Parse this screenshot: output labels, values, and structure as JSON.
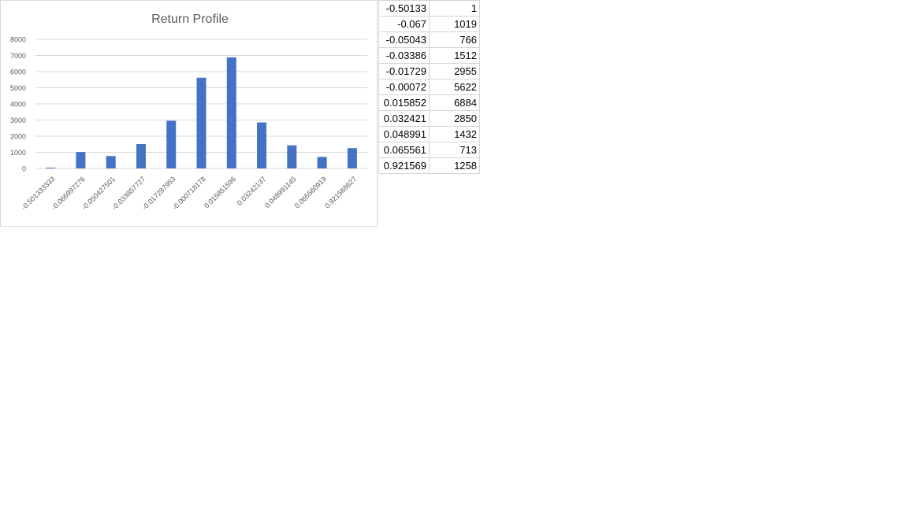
{
  "chart_data": {
    "type": "bar",
    "title": "Return Profile",
    "categories": [
      "-0.501333333",
      "-0.066997276",
      "-0.050427501",
      "-0.033857727",
      "-0.017287953",
      "-0.000718178",
      "0.015851596",
      "0.03242137",
      "0.048991145",
      "0.065560919",
      "0.921568627"
    ],
    "values": [
      1,
      1019,
      766,
      1512,
      2955,
      5622,
      6884,
      2850,
      1432,
      713,
      1258
    ],
    "ylim": [
      0,
      8000
    ],
    "yticks": [
      "0",
      "1000",
      "2000",
      "3000",
      "4000",
      "5000",
      "6000",
      "7000",
      "8000"
    ],
    "xlabel": "",
    "ylabel": "",
    "grid": true,
    "legend": "none",
    "bar_color": "#4472C4"
  },
  "table": {
    "rows": [
      {
        "a": "-0.50133",
        "b": "1"
      },
      {
        "a": "-0.067",
        "b": "1019"
      },
      {
        "a": "-0.05043",
        "b": "766"
      },
      {
        "a": "-0.03386",
        "b": "1512"
      },
      {
        "a": "-0.01729",
        "b": "2955"
      },
      {
        "a": "-0.00072",
        "b": "5622"
      },
      {
        "a": "0.015852",
        "b": "6884"
      },
      {
        "a": "0.032421",
        "b": "2850"
      },
      {
        "a": "0.048991",
        "b": "1432"
      },
      {
        "a": "0.065561",
        "b": "713"
      },
      {
        "a": "0.921569",
        "b": "1258"
      }
    ]
  }
}
